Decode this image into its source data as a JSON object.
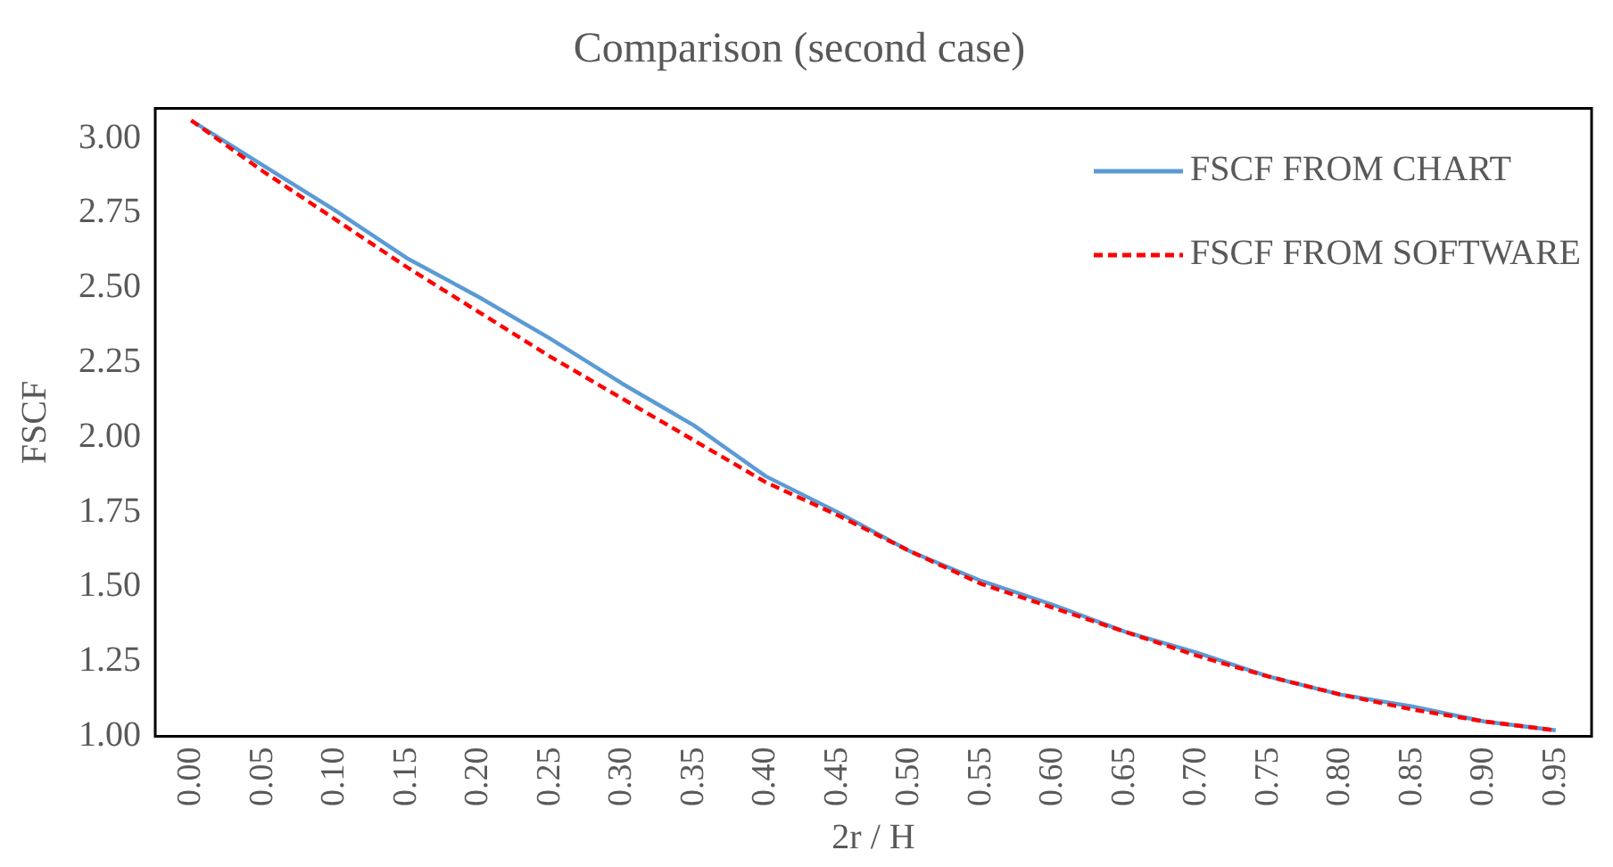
{
  "chart_data": {
    "type": "line",
    "title": "Comparison (second case)",
    "xlabel": "2r / H",
    "ylabel": "FSCF",
    "categories": [
      "0.00",
      "0.05",
      "0.10",
      "0.15",
      "0.20",
      "0.25",
      "0.30",
      "0.35",
      "0.40",
      "0.45",
      "0.50",
      "0.55",
      "0.60",
      "0.65",
      "0.70",
      "0.75",
      "0.80",
      "0.85",
      "0.90",
      "0.95"
    ],
    "series": [
      {
        "name": "FSCF FROM CHART",
        "color": "#5b9bd5",
        "line_style": "solid",
        "values": [
          3.06,
          2.91,
          2.76,
          2.6,
          2.47,
          2.33,
          2.18,
          2.04,
          1.87,
          1.75,
          1.62,
          1.52,
          1.44,
          1.35,
          1.28,
          1.2,
          1.14,
          1.1,
          1.05,
          1.02
        ]
      },
      {
        "name": "FSCF FROM SOFTWARE",
        "color": "#ff0000",
        "line_style": "dashed",
        "values": [
          3.06,
          2.89,
          2.73,
          2.57,
          2.42,
          2.27,
          2.13,
          1.99,
          1.85,
          1.74,
          1.62,
          1.51,
          1.43,
          1.35,
          1.27,
          1.2,
          1.14,
          1.09,
          1.05,
          1.02
        ]
      }
    ],
    "ylim": [
      1.0,
      3.1
    ],
    "yticks": [
      {
        "value": 1,
        "label": "1.00"
      },
      {
        "value": 1.25,
        "label": "1.25"
      },
      {
        "value": 1.5,
        "label": "1.50"
      },
      {
        "value": 1.75,
        "label": "1.75"
      },
      {
        "value": 2,
        "label": "2.00"
      },
      {
        "value": 2.25,
        "label": "2.25"
      },
      {
        "value": 2.5,
        "label": "2.50"
      },
      {
        "value": 2.75,
        "label": "2.75"
      },
      {
        "value": 3,
        "label": "3.00"
      }
    ],
    "grid": false,
    "legend": "top right",
    "marker": "none"
  }
}
